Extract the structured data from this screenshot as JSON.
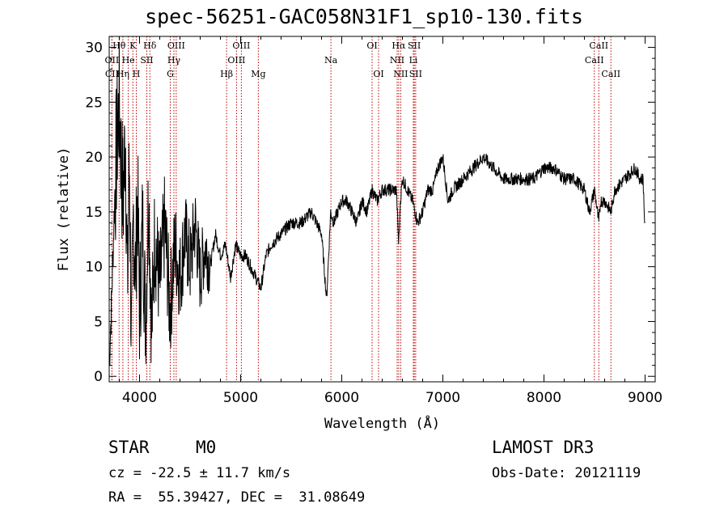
{
  "title": "spec-56251-GAC058N31F1_sp10-130.fits",
  "chart_data": {
    "type": "line",
    "title": "spec-56251-GAC058N31F1_sp10-130.fits",
    "xlabel": "Wavelength (Å)",
    "ylabel": "Flux (relative)",
    "xlim": [
      3700,
      9100
    ],
    "ylim": [
      -0.5,
      31
    ],
    "xticks": [
      4000,
      5000,
      6000,
      7000,
      8000,
      9000
    ],
    "yticks": [
      0,
      5,
      10,
      15,
      20,
      25,
      30
    ],
    "line_color": "#000000",
    "marker_color": "#c00000",
    "series": [
      {
        "name": "flux",
        "x": [
          3700,
          3720,
          3740,
          3760,
          3780,
          3800,
          3820,
          3840,
          3860,
          3880,
          3900,
          3920,
          3940,
          3960,
          3980,
          4000,
          4030,
          4060,
          4090,
          4120,
          4150,
          4200,
          4250,
          4300,
          4350,
          4400,
          4450,
          4500,
          4550,
          4600,
          4650,
          4700,
          4750,
          4800,
          4850,
          4900,
          4950,
          5000,
          5050,
          5100,
          5150,
          5200,
          5250,
          5300,
          5400,
          5500,
          5600,
          5700,
          5800,
          5850,
          5890,
          5920,
          6000,
          6050,
          6100,
          6150,
          6200,
          6250,
          6300,
          6350,
          6400,
          6450,
          6500,
          6540,
          6563,
          6580,
          6600,
          6650,
          6700,
          6750,
          6800,
          6850,
          6900,
          6950,
          7000,
          7050,
          7100,
          7200,
          7300,
          7400,
          7500,
          7600,
          7700,
          7800,
          7900,
          8000,
          8100,
          8200,
          8300,
          8400,
          8450,
          8500,
          8542,
          8560,
          8600,
          8662,
          8700,
          8800,
          8900,
          8950,
          8980,
          9000
        ],
        "y": [
          1,
          6,
          12,
          18,
          22,
          25,
          19,
          16,
          23,
          8,
          20,
          2,
          15,
          9,
          17,
          6,
          14,
          5,
          17,
          4,
          13,
          8,
          14,
          6,
          12,
          9,
          13,
          10,
          14,
          9,
          12,
          10,
          13,
          11,
          12,
          9,
          12,
          11,
          11,
          10,
          9,
          8,
          11,
          12,
          13,
          14,
          14,
          15,
          13,
          7,
          15,
          14,
          16,
          16,
          15,
          14,
          16,
          15,
          17,
          16,
          17,
          17,
          17,
          17,
          12,
          16,
          18,
          17,
          16,
          14,
          15,
          17,
          17,
          19,
          20,
          16,
          17,
          18,
          19,
          20,
          19,
          18,
          18,
          18,
          18,
          19,
          19,
          18,
          18,
          17,
          15,
          17,
          14,
          16,
          16,
          15,
          17,
          18,
          19,
          18,
          18,
          13
        ],
        "noisy_below_wavelength": 4700
      }
    ],
    "line_markers": [
      {
        "label": "Hθ",
        "wavelength": 3798,
        "row": 1
      },
      {
        "label": "OII",
        "wavelength": 3727,
        "row": 2
      },
      {
        "label": "CII",
        "wavelength": 3727,
        "row": 3
      },
      {
        "label": "Hη",
        "wavelength": 3835,
        "row": 3
      },
      {
        "label": "He",
        "wavelength": 3889,
        "row": 2
      },
      {
        "label": "K",
        "wavelength": 3934,
        "row": 1
      },
      {
        "label": "H",
        "wavelength": 3968,
        "row": 3
      },
      {
        "label": "SII",
        "wavelength": 4072,
        "row": 2
      },
      {
        "label": "Hδ",
        "wavelength": 4102,
        "row": 1
      },
      {
        "label": "OIII",
        "wavelength": 4363,
        "row": 1
      },
      {
        "label": "Hγ",
        "wavelength": 4340,
        "row": 2
      },
      {
        "label": "G",
        "wavelength": 4304,
        "row": 3
      },
      {
        "label": "Hβ",
        "wavelength": 4861,
        "row": 3
      },
      {
        "label": "OIII",
        "wavelength": 4959,
        "row": 2
      },
      {
        "label": "OIII",
        "wavelength": 5007,
        "row": 1
      },
      {
        "label": "Mg",
        "wavelength": 5175,
        "row": 3
      },
      {
        "label": "Na",
        "wavelength": 5893,
        "row": 2
      },
      {
        "label": "OI",
        "wavelength": 6300,
        "row": 1
      },
      {
        "label": "OI",
        "wavelength": 6364,
        "row": 3
      },
      {
        "label": "Hα",
        "wavelength": 6563,
        "row": 1
      },
      {
        "label": "NII",
        "wavelength": 6548,
        "row": 2
      },
      {
        "label": "NII",
        "wavelength": 6583,
        "row": 3
      },
      {
        "label": "SII",
        "wavelength": 6717,
        "row": 1
      },
      {
        "label": "Li",
        "wavelength": 6708,
        "row": 2
      },
      {
        "label": "SII",
        "wavelength": 6731,
        "row": 3
      },
      {
        "label": "CaII",
        "wavelength": 8542,
        "row": 1
      },
      {
        "label": "CaII",
        "wavelength": 8498,
        "row": 2
      },
      {
        "label": "CaII",
        "wavelength": 8662,
        "row": 3
      }
    ]
  },
  "info": {
    "classification": "STAR",
    "subclass": "M0",
    "survey": "LAMOST DR3",
    "cz": "cz = -22.5 ± 11.7 km/s",
    "obs_date": "Obs-Date: 20121119",
    "coords": "RA =  55.39427, DEC =  31.08649"
  }
}
